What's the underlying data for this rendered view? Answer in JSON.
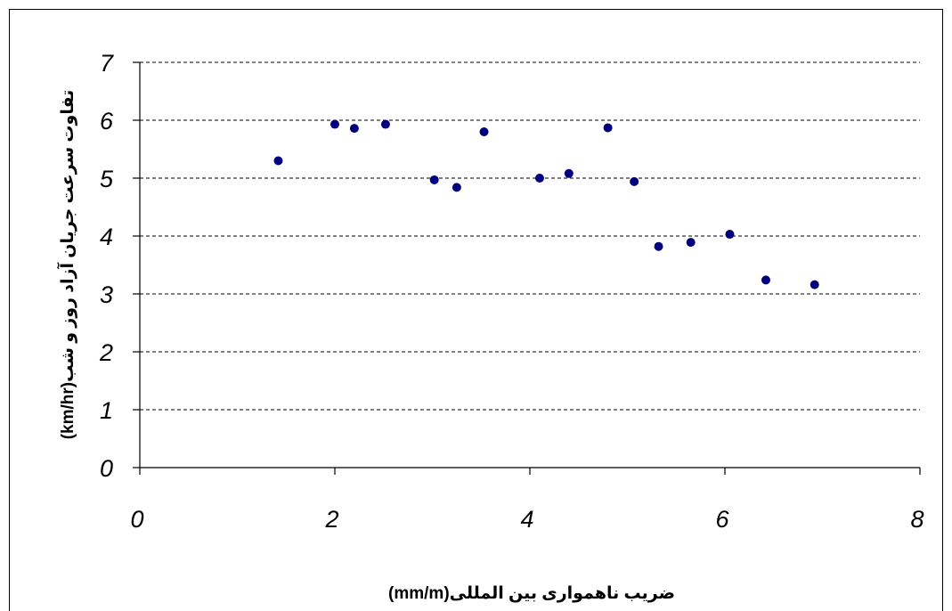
{
  "chart_data": {
    "type": "scatter",
    "title": "",
    "xlabel": "ضریب ناهمواری بین المللی(mm/m)",
    "ylabel": "تفاوت سرعت جریان آزاد روز و شب(km/hr)",
    "xlim": [
      0,
      8
    ],
    "ylim": [
      0,
      7
    ],
    "x_ticks": [
      "0",
      "2",
      "4",
      "6",
      "8"
    ],
    "y_ticks": [
      "0",
      "1",
      "2",
      "3",
      "4",
      "5",
      "6",
      "7"
    ],
    "grid": {
      "horizontal": true,
      "style": "dashed"
    },
    "marker_color": "#00007f",
    "points": [
      {
        "x": 1.42,
        "y": 5.3
      },
      {
        "x": 2.0,
        "y": 5.93
      },
      {
        "x": 2.2,
        "y": 5.86
      },
      {
        "x": 2.52,
        "y": 5.93
      },
      {
        "x": 3.02,
        "y": 4.97
      },
      {
        "x": 3.25,
        "y": 4.84
      },
      {
        "x": 3.53,
        "y": 5.8
      },
      {
        "x": 4.1,
        "y": 5.0
      },
      {
        "x": 4.4,
        "y": 5.08
      },
      {
        "x": 4.8,
        "y": 5.87
      },
      {
        "x": 5.07,
        "y": 4.94
      },
      {
        "x": 5.32,
        "y": 3.82
      },
      {
        "x": 5.65,
        "y": 3.89
      },
      {
        "x": 6.05,
        "y": 4.03
      },
      {
        "x": 6.42,
        "y": 3.24
      },
      {
        "x": 6.92,
        "y": 3.16
      }
    ]
  }
}
